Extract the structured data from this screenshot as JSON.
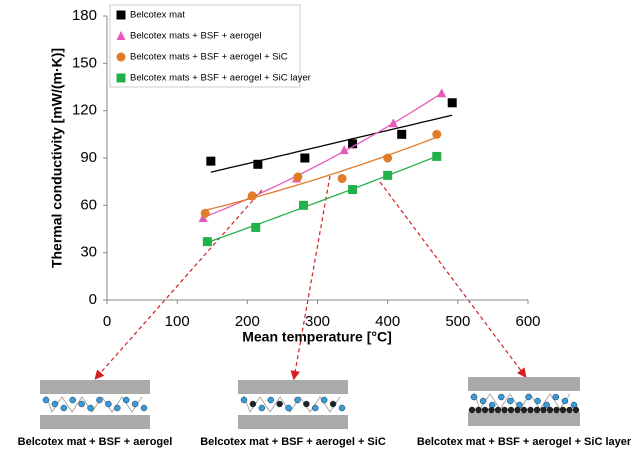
{
  "chart_data": {
    "type": "scatter",
    "xlabel": "Mean temperature [°C]",
    "ylabel": "Thermal conductivity [mW/(m·K)]",
    "xlim": [
      0,
      600
    ],
    "xticks": [
      0,
      100,
      200,
      300,
      400,
      500,
      600
    ],
    "ylim": [
      0,
      180
    ],
    "yticks": [
      0,
      30,
      60,
      90,
      120,
      150,
      180
    ],
    "grid": false,
    "legend": "upper left",
    "series": [
      {
        "name": "Belcotex mat",
        "color": "#000000",
        "marker": "square",
        "trendline": "linear",
        "x": [
          148,
          215,
          282,
          350,
          420,
          492
        ],
        "values": [
          88,
          86,
          90,
          99,
          105,
          125
        ]
      },
      {
        "name": "Belcotex mats + BSF + aerogel",
        "color": "#e85aba",
        "marker": "triangle",
        "trendline": "polynomial",
        "x": [
          137,
          205,
          270,
          338,
          408,
          477
        ],
        "values": [
          52,
          66,
          77,
          95,
          112,
          131
        ]
      },
      {
        "name": "Belcotex mats + BSF + aerogel + SiC",
        "color": "#e07b2a",
        "marker": "circle",
        "trendline": "polynomial",
        "x": [
          140,
          207,
          272,
          335,
          400,
          470
        ],
        "values": [
          55,
          66,
          78,
          77,
          90,
          105
        ]
      },
      {
        "name": "Belcotex mats + BSF + aerogel + SiC layer",
        "color": "#22b04b",
        "marker": "square",
        "trendline": "polynomial",
        "x": [
          143,
          212,
          280,
          350,
          400,
          470
        ],
        "values": [
          37,
          46,
          60,
          70,
          79,
          91
        ]
      }
    ]
  },
  "diagrams": [
    {
      "label": "Belcotex mat + BSF + aerogel"
    },
    {
      "label": "Belcotex mat + BSF + aerogel + SiC"
    },
    {
      "label": "Belcotex mat + BSF + aerogel + SiC layer"
    }
  ]
}
